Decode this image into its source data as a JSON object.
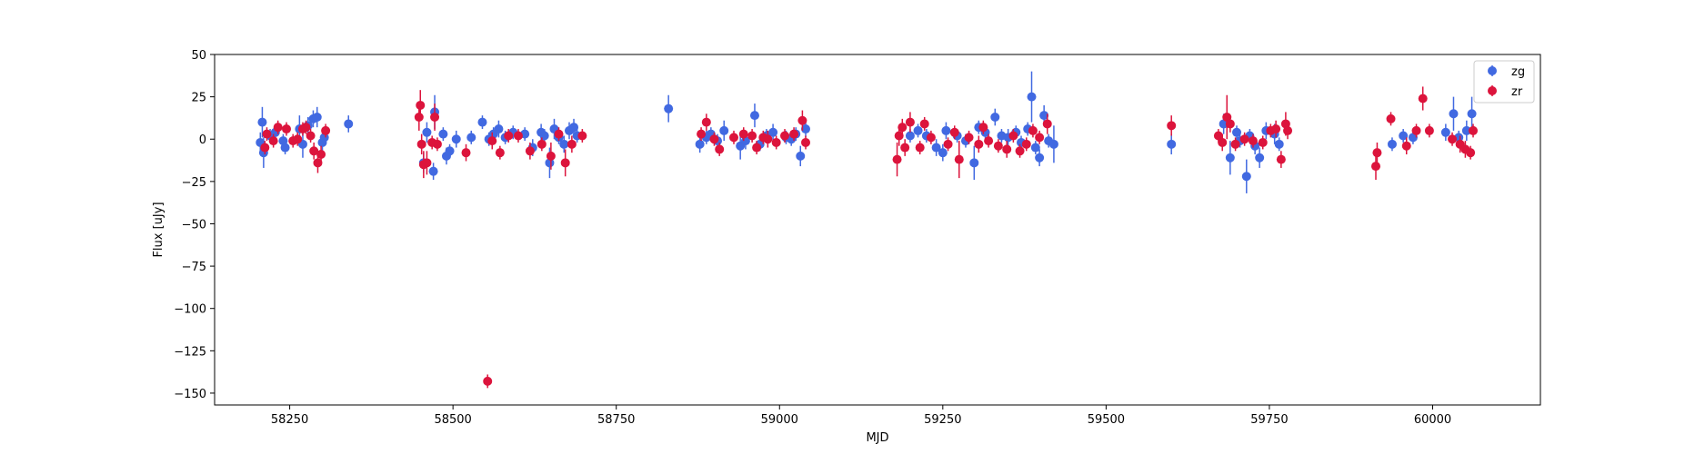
{
  "chart_data": {
    "type": "scatter",
    "title": "",
    "xlabel": "MJD",
    "ylabel": "Flux [uJy]",
    "xlim": [
      58135,
      60165
    ],
    "ylim": [
      -157,
      50
    ],
    "xticks": [
      58250,
      58500,
      58750,
      59000,
      59250,
      59500,
      59750,
      60000
    ],
    "yticks": [
      50,
      25,
      0,
      -25,
      -50,
      -75,
      -100,
      -125,
      -150
    ],
    "ytick_labels": [
      "50",
      "25",
      "0",
      "−25",
      "−50",
      "−75",
      "−100",
      "−125",
      "−150"
    ],
    "grid": false,
    "legend_position": "top-right",
    "series": [
      {
        "name": "zg",
        "color": "#4169e1",
        "points": [
          [
            58205,
            -2,
            6
          ],
          [
            58208,
            10,
            9
          ],
          [
            58210,
            -8,
            9
          ],
          [
            58220,
            2,
            4
          ],
          [
            58228,
            4,
            5
          ],
          [
            58240,
            -1,
            4
          ],
          [
            58243,
            -5,
            4
          ],
          [
            58265,
            6,
            8
          ],
          [
            58270,
            -3,
            8
          ],
          [
            58278,
            8,
            5
          ],
          [
            58286,
            12,
            5
          ],
          [
            58292,
            13,
            6
          ],
          [
            58300,
            -2,
            5
          ],
          [
            58303,
            1,
            4
          ],
          [
            58340,
            9,
            5
          ],
          [
            58455,
            -14,
            6
          ],
          [
            58460,
            4,
            6
          ],
          [
            58470,
            -19,
            5
          ],
          [
            58472,
            16,
            10
          ],
          [
            58485,
            3,
            4
          ],
          [
            58490,
            -10,
            5
          ],
          [
            58495,
            -7,
            4
          ],
          [
            58505,
            0,
            5
          ],
          [
            58528,
            1,
            4
          ],
          [
            58545,
            10,
            4
          ],
          [
            58555,
            0,
            4
          ],
          [
            58562,
            3,
            4
          ],
          [
            58570,
            6,
            5
          ],
          [
            58580,
            1,
            4
          ],
          [
            58592,
            4,
            4
          ],
          [
            58610,
            3,
            4
          ],
          [
            58622,
            -5,
            5
          ],
          [
            58635,
            4,
            5
          ],
          [
            58640,
            2,
            4
          ],
          [
            58648,
            -14,
            9
          ],
          [
            58655,
            6,
            6
          ],
          [
            58662,
            1,
            4
          ],
          [
            58670,
            -3,
            5
          ],
          [
            58678,
            5,
            5
          ],
          [
            58685,
            7,
            5
          ],
          [
            58690,
            2,
            4
          ],
          [
            58830,
            18,
            8
          ],
          [
            58878,
            -3,
            5
          ],
          [
            58888,
            1,
            4
          ],
          [
            58895,
            3,
            4
          ],
          [
            58905,
            -1,
            4
          ],
          [
            58915,
            5,
            6
          ],
          [
            58940,
            -4,
            8
          ],
          [
            58948,
            -1,
            5
          ],
          [
            58962,
            14,
            7
          ],
          [
            58970,
            -3,
            4
          ],
          [
            58980,
            2,
            4
          ],
          [
            58990,
            4,
            5
          ],
          [
            59010,
            1,
            4
          ],
          [
            59018,
            0,
            4
          ],
          [
            59025,
            3,
            4
          ],
          [
            59032,
            -10,
            6
          ],
          [
            59040,
            6,
            5
          ],
          [
            59200,
            2,
            4
          ],
          [
            59212,
            5,
            4
          ],
          [
            59225,
            2,
            4
          ],
          [
            59240,
            -5,
            5
          ],
          [
            59250,
            -8,
            5
          ],
          [
            59255,
            5,
            5
          ],
          [
            59272,
            2,
            4
          ],
          [
            59285,
            -1,
            4
          ],
          [
            59298,
            -14,
            10
          ],
          [
            59305,
            7,
            4
          ],
          [
            59315,
            4,
            5
          ],
          [
            59330,
            13,
            5
          ],
          [
            59340,
            2,
            4
          ],
          [
            59350,
            1,
            5
          ],
          [
            59362,
            4,
            4
          ],
          [
            59370,
            -2,
            4
          ],
          [
            59380,
            6,
            4
          ],
          [
            59386,
            25,
            15
          ],
          [
            59392,
            -5,
            4
          ],
          [
            59398,
            -11,
            5
          ],
          [
            59405,
            14,
            6
          ],
          [
            59412,
            -1,
            4
          ],
          [
            59420,
            -3,
            11
          ],
          [
            59600,
            -3,
            6
          ],
          [
            59680,
            9,
            6
          ],
          [
            59690,
            -11,
            10
          ],
          [
            59700,
            4,
            4
          ],
          [
            59705,
            -1,
            4
          ],
          [
            59715,
            -22,
            10
          ],
          [
            59720,
            2,
            4
          ],
          [
            59728,
            -4,
            5
          ],
          [
            59735,
            -11,
            6
          ],
          [
            59745,
            5,
            5
          ],
          [
            59758,
            3,
            6
          ],
          [
            59765,
            -3,
            4
          ],
          [
            59938,
            -3,
            4
          ],
          [
            59955,
            2,
            4
          ],
          [
            59970,
            1,
            4
          ],
          [
            60020,
            4,
            5
          ],
          [
            60032,
            15,
            10
          ],
          [
            60040,
            1,
            4
          ],
          [
            60052,
            5,
            6
          ],
          [
            60060,
            15,
            10
          ]
        ]
      },
      {
        "name": "zr",
        "color": "#dc143c",
        "points": [
          [
            58212,
            -5,
            4
          ],
          [
            58215,
            3,
            4
          ],
          [
            58225,
            -1,
            4
          ],
          [
            58232,
            7,
            4
          ],
          [
            58245,
            6,
            4
          ],
          [
            58255,
            -1,
            4
          ],
          [
            58262,
            0,
            4
          ],
          [
            58270,
            6,
            4
          ],
          [
            58275,
            7,
            4
          ],
          [
            58282,
            2,
            4
          ],
          [
            58287,
            -7,
            5
          ],
          [
            58293,
            -14,
            6
          ],
          [
            58298,
            -9,
            5
          ],
          [
            58305,
            5,
            4
          ],
          [
            58448,
            13,
            8
          ],
          [
            58450,
            20,
            9
          ],
          [
            58452,
            -3,
            6
          ],
          [
            58455,
            -15,
            8
          ],
          [
            58460,
            -14,
            7
          ],
          [
            58468,
            -2,
            4
          ],
          [
            58472,
            13,
            8
          ],
          [
            58476,
            -3,
            4
          ],
          [
            58520,
            -8,
            5
          ],
          [
            58553,
            -143,
            4
          ],
          [
            58560,
            -1,
            5
          ],
          [
            58572,
            -8,
            4
          ],
          [
            58585,
            2,
            4
          ],
          [
            58600,
            2,
            4
          ],
          [
            58618,
            -7,
            5
          ],
          [
            58636,
            -3,
            4
          ],
          [
            58650,
            -10,
            8
          ],
          [
            58662,
            3,
            4
          ],
          [
            58672,
            -14,
            8
          ],
          [
            58682,
            -3,
            5
          ],
          [
            58698,
            2,
            4
          ],
          [
            58880,
            3,
            4
          ],
          [
            58888,
            10,
            5
          ],
          [
            58900,
            0,
            4
          ],
          [
            58908,
            -6,
            4
          ],
          [
            58930,
            1,
            4
          ],
          [
            58945,
            3,
            4
          ],
          [
            58958,
            2,
            4
          ],
          [
            58965,
            -5,
            4
          ],
          [
            58975,
            1,
            4
          ],
          [
            58982,
            0,
            5
          ],
          [
            58995,
            -2,
            4
          ],
          [
            59008,
            2,
            4
          ],
          [
            59022,
            3,
            4
          ],
          [
            59035,
            11,
            6
          ],
          [
            59040,
            -2,
            4
          ],
          [
            59180,
            -12,
            10
          ],
          [
            59183,
            2,
            6
          ],
          [
            59188,
            7,
            5
          ],
          [
            59192,
            -5,
            5
          ],
          [
            59200,
            10,
            6
          ],
          [
            59215,
            -5,
            4
          ],
          [
            59222,
            9,
            4
          ],
          [
            59232,
            1,
            4
          ],
          [
            59258,
            -3,
            4
          ],
          [
            59268,
            4,
            4
          ],
          [
            59275,
            -12,
            11
          ],
          [
            59290,
            1,
            4
          ],
          [
            59305,
            -3,
            5
          ],
          [
            59312,
            7,
            4
          ],
          [
            59320,
            -1,
            4
          ],
          [
            59335,
            -4,
            4
          ],
          [
            59348,
            -6,
            5
          ],
          [
            59358,
            2,
            4
          ],
          [
            59368,
            -7,
            4
          ],
          [
            59378,
            -3,
            4
          ],
          [
            59388,
            5,
            4
          ],
          [
            59398,
            1,
            4
          ],
          [
            59410,
            9,
            6
          ],
          [
            59600,
            8,
            6
          ],
          [
            59672,
            2,
            4
          ],
          [
            59678,
            -2,
            5
          ],
          [
            59685,
            13,
            13
          ],
          [
            59690,
            9,
            5
          ],
          [
            59698,
            -3,
            4
          ],
          [
            59712,
            0,
            4
          ],
          [
            59725,
            -1,
            4
          ],
          [
            59740,
            -2,
            4
          ],
          [
            59752,
            5,
            4
          ],
          [
            59760,
            6,
            5
          ],
          [
            59768,
            -12,
            5
          ],
          [
            59775,
            9,
            7
          ],
          [
            59778,
            5,
            5
          ],
          [
            59913,
            -16,
            8
          ],
          [
            59915,
            -8,
            6
          ],
          [
            59936,
            12,
            4
          ],
          [
            59960,
            -4,
            5
          ],
          [
            59975,
            5,
            4
          ],
          [
            59985,
            24,
            7
          ],
          [
            59995,
            5,
            4
          ],
          [
            60030,
            0,
            4
          ],
          [
            60042,
            -3,
            5
          ],
          [
            60050,
            -6,
            5
          ],
          [
            60058,
            -8,
            4
          ],
          [
            60062,
            5,
            4
          ]
        ]
      }
    ]
  }
}
